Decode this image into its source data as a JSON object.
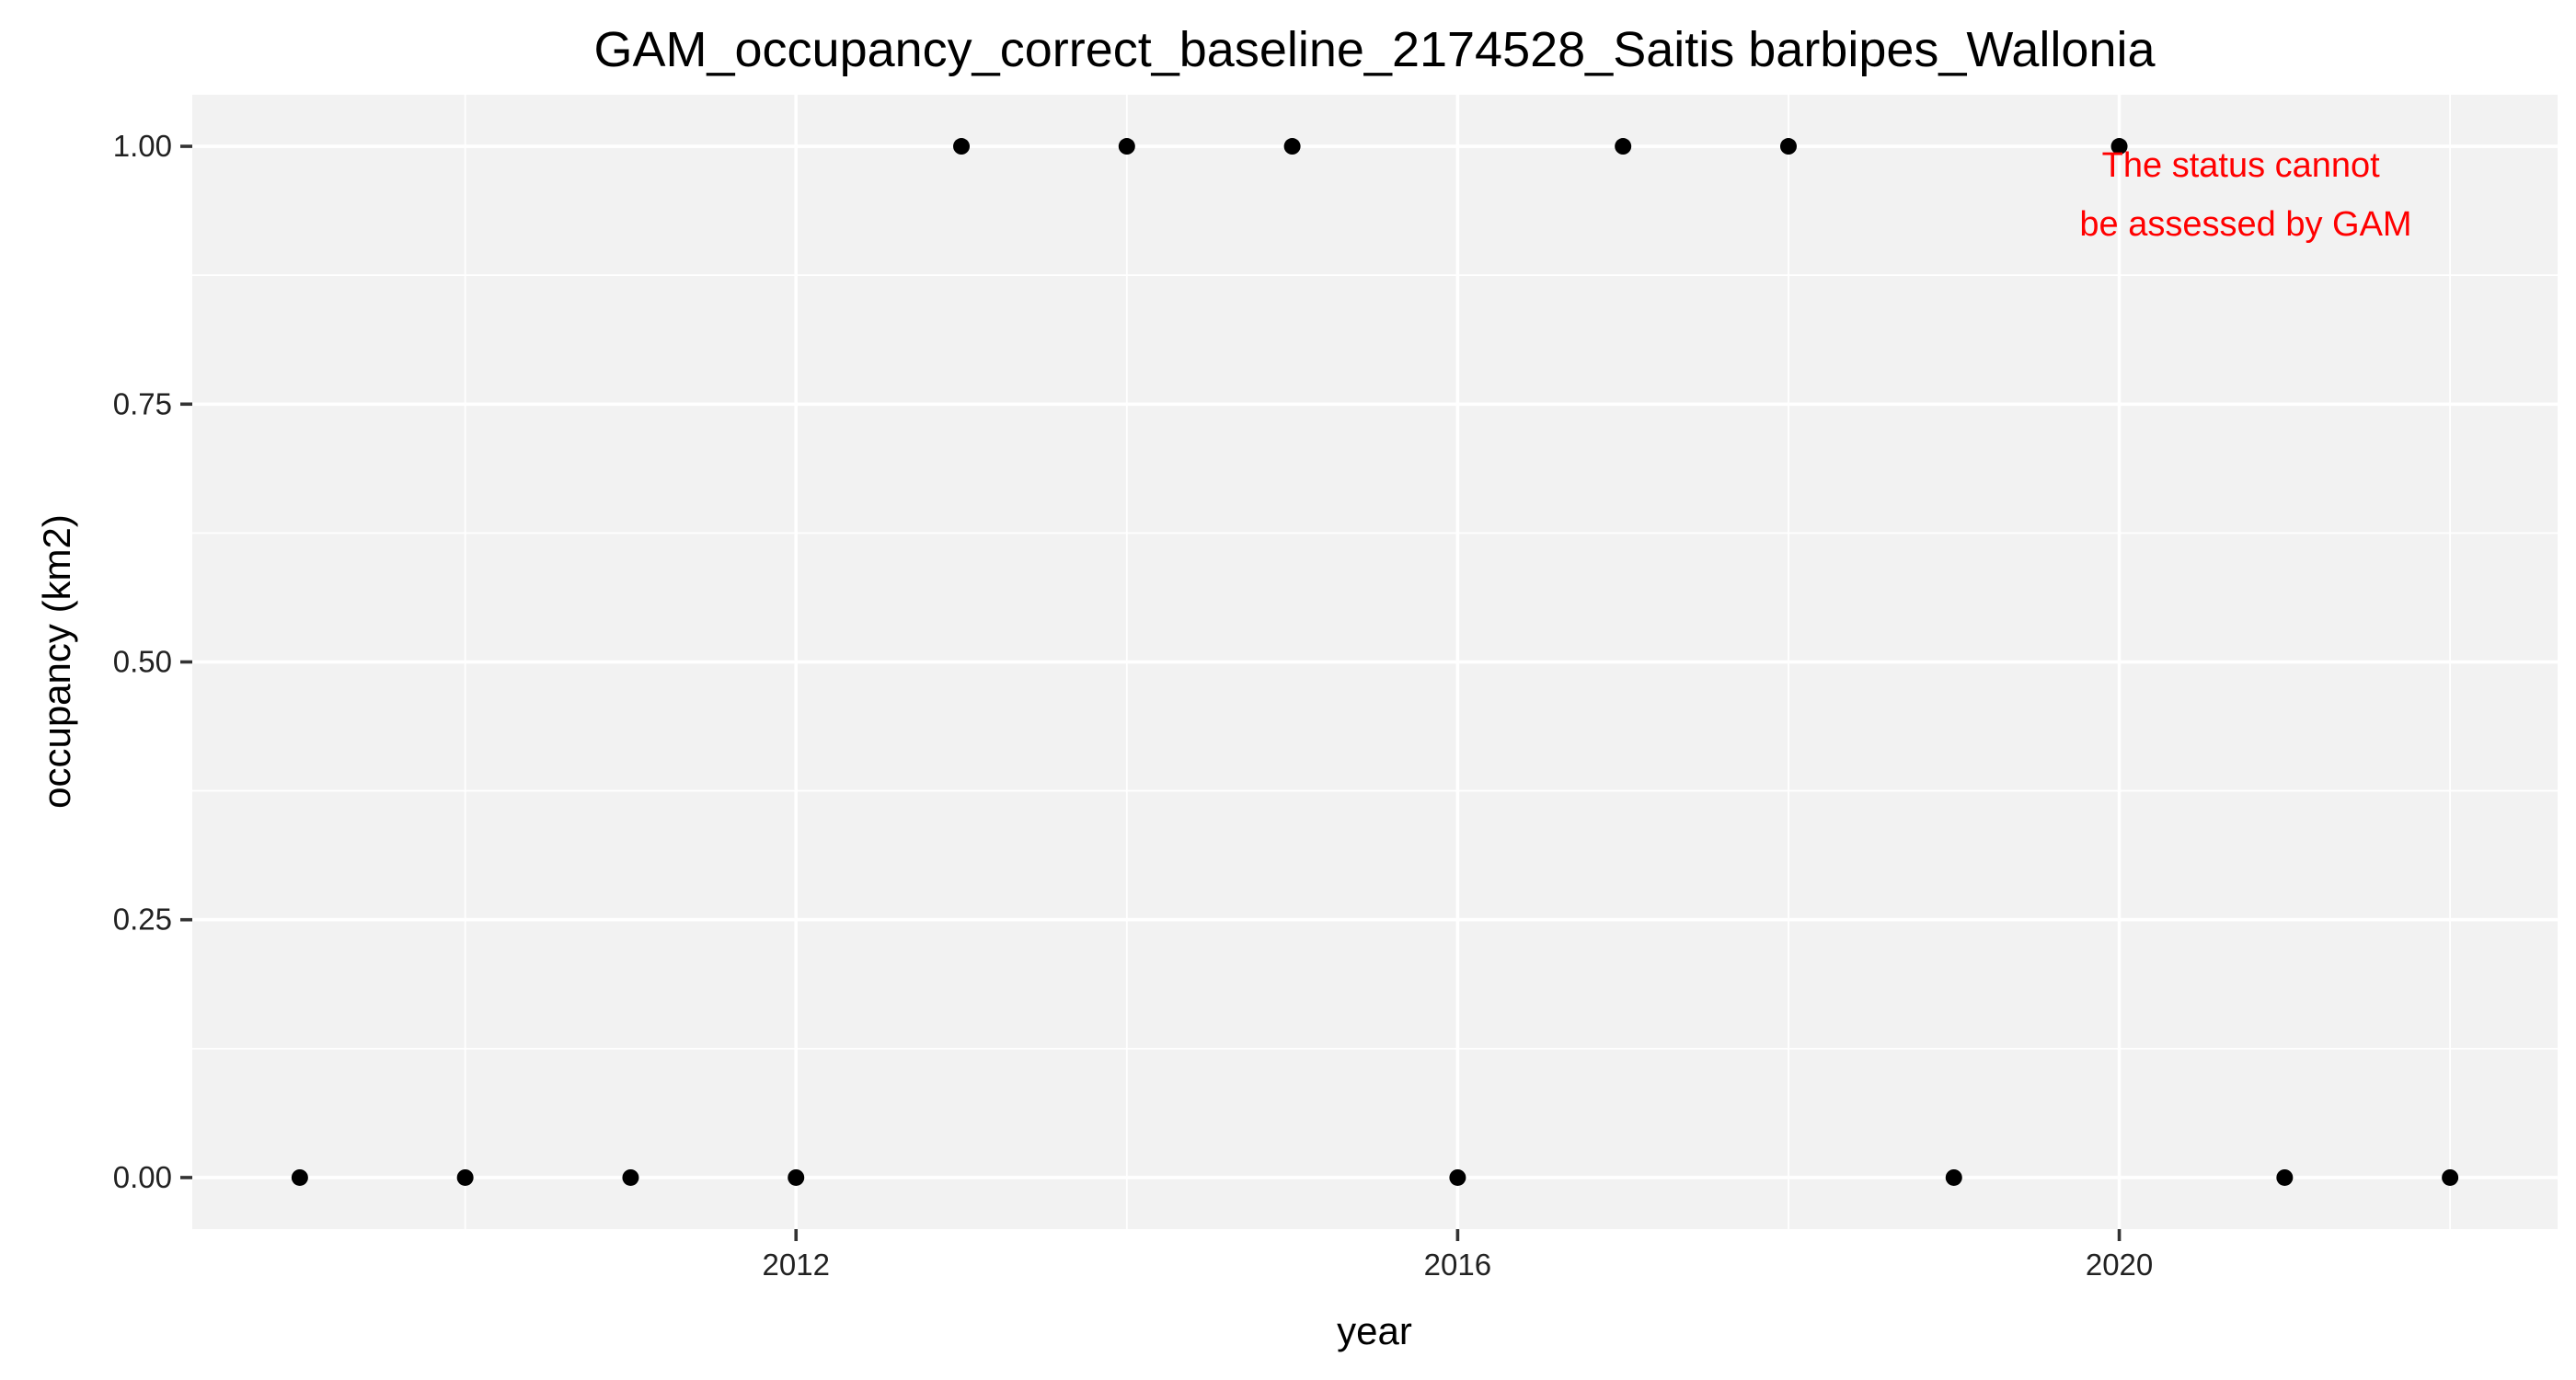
{
  "chart_data": {
    "type": "scatter",
    "title": "GAM_occupancy_correct_baseline_2174528_Saitis barbipes_Wallonia",
    "xlabel": "year",
    "ylabel": "occupancy (km2)",
    "x": [
      2009,
      2010,
      2011,
      2012,
      2013,
      2014,
      2015,
      2016,
      2017,
      2018,
      2019,
      2020,
      2021,
      2022
    ],
    "y": [
      0,
      0,
      0,
      0,
      1,
      1,
      1,
      0,
      1,
      1,
      0,
      1,
      0,
      0
    ],
    "xlim": [
      2008.35,
      2022.65
    ],
    "ylim": [
      -0.05,
      1.05
    ],
    "x_ticks": [
      2012,
      2016,
      2020
    ],
    "x_tick_labels": [
      "2012",
      "2016",
      "2020"
    ],
    "y_ticks": [
      0,
      0.25,
      0.5,
      0.75,
      1
    ],
    "y_tick_labels": [
      "0.00",
      "0.25",
      "0.50",
      "0.75",
      "1.00"
    ],
    "grid": true,
    "legend": "none",
    "annotation": {
      "lines": [
        "The status cannot",
        "be assessed by GAM"
      ],
      "color": "#ff0000"
    },
    "colors": {
      "panel_background": "#f2f2f2",
      "grid": "#ffffff",
      "point": "#000000"
    }
  }
}
